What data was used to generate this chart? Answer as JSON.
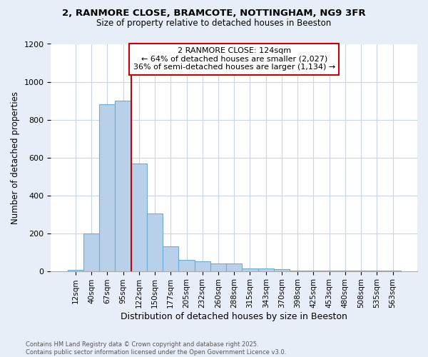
{
  "title1": "2, RANMORE CLOSE, BRAMCOTE, NOTTINGHAM, NG9 3FR",
  "title2": "Size of property relative to detached houses in Beeston",
  "xlabel": "Distribution of detached houses by size in Beeston",
  "ylabel": "Number of detached properties",
  "categories": [
    "12sqm",
    "40sqm",
    "67sqm",
    "95sqm",
    "122sqm",
    "150sqm",
    "177sqm",
    "205sqm",
    "232sqm",
    "260sqm",
    "288sqm",
    "315sqm",
    "343sqm",
    "370sqm",
    "398sqm",
    "425sqm",
    "453sqm",
    "480sqm",
    "508sqm",
    "535sqm",
    "563sqm"
  ],
  "values": [
    5,
    200,
    880,
    900,
    570,
    305,
    130,
    60,
    50,
    40,
    40,
    15,
    15,
    10,
    3,
    2,
    1,
    1,
    2,
    1,
    2
  ],
  "bar_color": "#b8d0ea",
  "bar_edge_color": "#6aaed6",
  "vline_color": "#cc0000",
  "annotation_title": "2 RANMORE CLOSE: 124sqm",
  "annotation_line1": "← 64% of detached houses are smaller (2,027)",
  "annotation_line2": "36% of semi-detached houses are larger (1,134) →",
  "annotation_box_edgecolor": "#cc0000",
  "ylim": [
    0,
    1200
  ],
  "yticks": [
    0,
    200,
    400,
    600,
    800,
    1000,
    1200
  ],
  "footnote1": "Contains HM Land Registry data © Crown copyright and database right 2025.",
  "footnote2": "Contains public sector information licensed under the Open Government Licence v3.0.",
  "bg_color": "#e8eef8",
  "plot_bg_color": "#ffffff",
  "grid_color": "#c8d4ea"
}
